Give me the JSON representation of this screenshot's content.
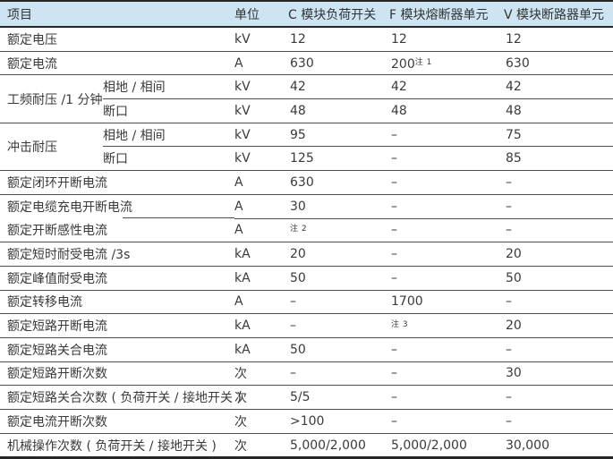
{
  "table": {
    "colors": {
      "header_bg": "#cde4f3",
      "border_dark": "#262626",
      "row_line": "#4f4f4f",
      "text": "#3a3a3a"
    },
    "headers": {
      "item": "项目",
      "unit": "单位",
      "col_c": "C 模块负荷开关",
      "col_f": "F 模块熔断器单元",
      "col_v": "V 模块断路器单元"
    },
    "rows": [
      {
        "label": "额定电压",
        "unit": "kV",
        "c": "12",
        "f": "12",
        "v": "12"
      },
      {
        "label": "额定电流",
        "unit": "A",
        "c": "630",
        "f": "200",
        "f_note": "注 1",
        "v": "630"
      },
      {
        "group": "工频耐压 /1 分钟",
        "sub": "相地 / 相间",
        "unit": "kV",
        "c": "42",
        "f": "42",
        "v": "42"
      },
      {
        "sub": "断口",
        "unit": "kV",
        "c": "48",
        "f": "48",
        "v": "48"
      },
      {
        "group": "冲击耐压",
        "sub": "相地 / 相间",
        "unit": "kV",
        "c": "95",
        "f": "–",
        "v": "75"
      },
      {
        "sub": "断口",
        "unit": "kV",
        "c": "125",
        "f": "–",
        "v": "85"
      },
      {
        "label": "额定闭环开断电流",
        "unit": "A",
        "c": "630",
        "f": "–",
        "v": "–"
      },
      {
        "label": "额定电缆充电开断电流",
        "unit": "A",
        "c": "30",
        "f": "–",
        "v": "–"
      },
      {
        "label": "额定开断感性电流",
        "unit": "A",
        "c_note": "注 2",
        "f": "–",
        "v": "–"
      },
      {
        "label": "额定短时耐受电流 /3s",
        "unit": "kA",
        "c": "20",
        "f": "–",
        "v": "20"
      },
      {
        "label": "额定峰值耐受电流",
        "unit": "kA",
        "c": "50",
        "f": "–",
        "v": "50"
      },
      {
        "label": "额定转移电流",
        "unit": "A",
        "c": "–",
        "f": "1700",
        "v": "–"
      },
      {
        "label": "额定短路开断电流",
        "unit": "kA",
        "c": "–",
        "f_note": "注 3",
        "v": "20"
      },
      {
        "label": "额定短路关合电流",
        "unit": "kA",
        "c": "50",
        "f": "–",
        "v": "–"
      },
      {
        "label": "额定短路开断次数",
        "unit": "次",
        "c": "–",
        "f": "–",
        "v": "30"
      },
      {
        "label": "额定短路关合次数 ( 负荷开关 / 接地开关 )",
        "unit": "次",
        "c": "5/5",
        "f": "–",
        "v": "–"
      },
      {
        "label": "额定电流开断次数",
        "unit": "次",
        "c": ">100",
        "f": "–",
        "v": "–"
      },
      {
        "label": "机械操作次数 ( 负荷开关 / 接地开关 )",
        "unit": "次",
        "c": "5,000/2,000",
        "f": "5,000/2,000",
        "v": "30,000"
      }
    ]
  }
}
